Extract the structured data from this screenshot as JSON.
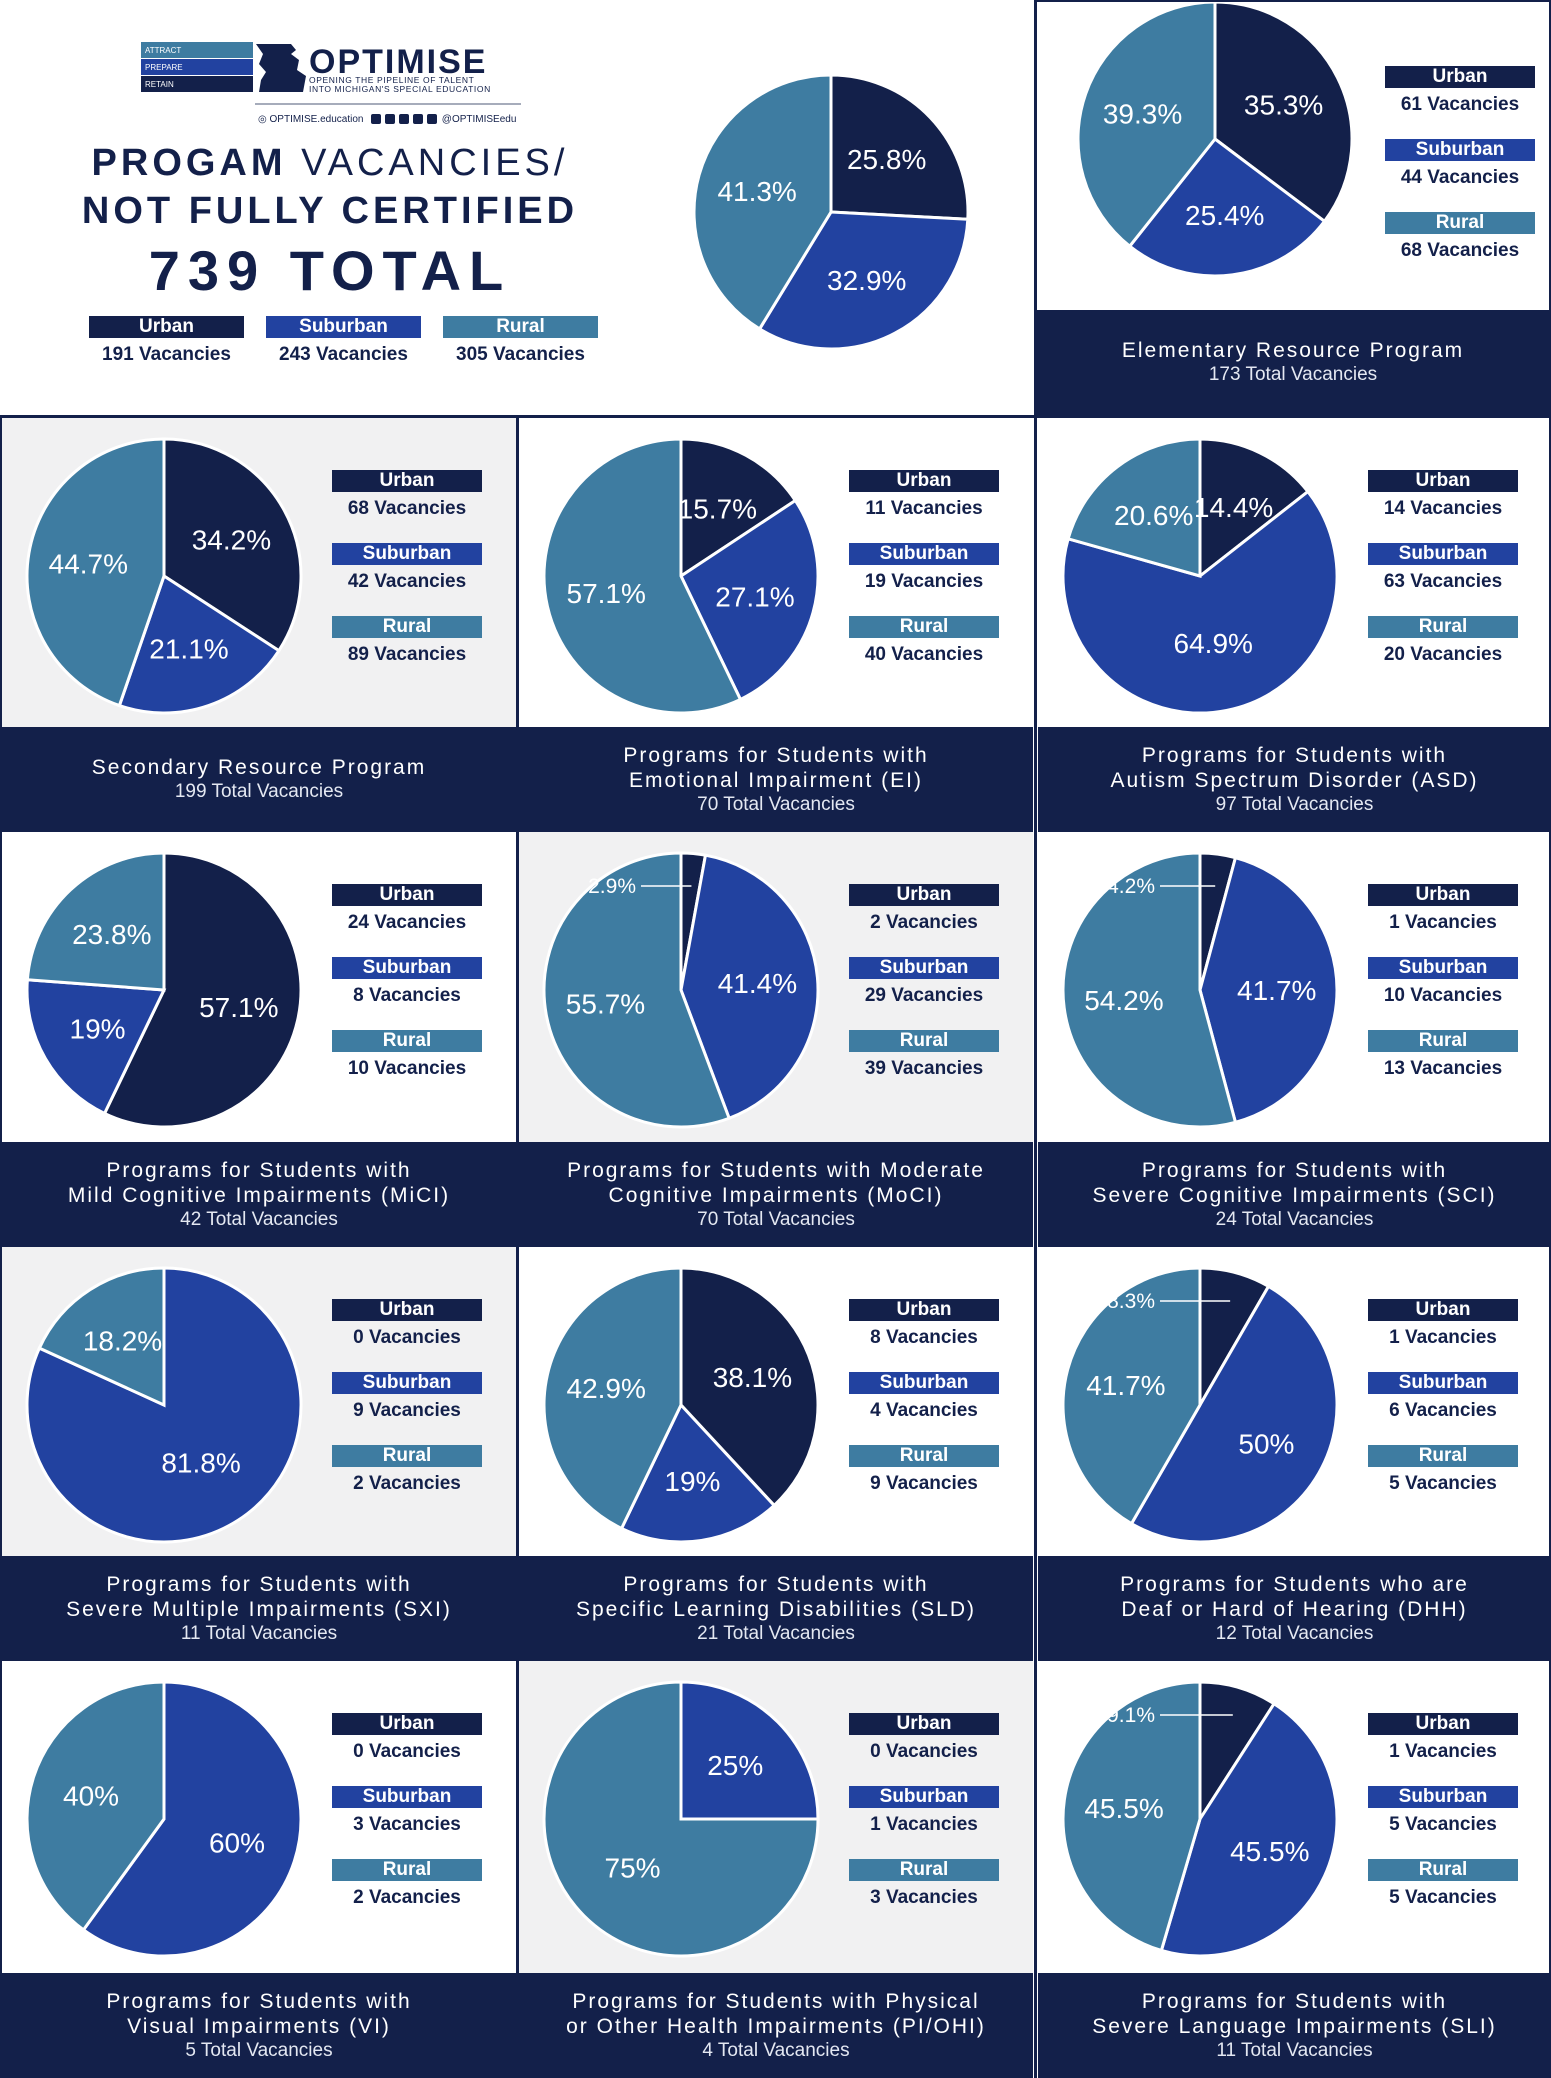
{
  "header": {
    "brand_name": "OPTIMISE",
    "tagline_line1": "OPENING THE PIPELINE OF TALENT",
    "tagline_line2": "INTO MICHIGAN'S SPECIAL EDUCATION",
    "steps": [
      "ATTRACT",
      "PREPARE",
      "RETAIN"
    ],
    "website": "OPTIMISE.education",
    "handle": "@OPTIMISEedu",
    "title_line1_a": "PROGAM ",
    "title_line1_b": "VACANCIES/",
    "title_line2": "NOT FULLY CERTIFIED",
    "total": "739 TOTAL"
  },
  "colors": {
    "urban": "#13204a",
    "suburban": "#2242a0",
    "rural": "#3e7ca1",
    "navy": "#13204a",
    "grey_panel": "#f1f1f2"
  },
  "legend_labels": {
    "urban": "Urban",
    "suburban": "Suburban",
    "rural": "Rural"
  },
  "chart_data": [
    {
      "id": "overall",
      "type": "pie",
      "title": "Progam Vacancies/Not Fully Certified",
      "total": "739 TOTAL",
      "slices": [
        {
          "name": "Urban",
          "value": 191,
          "label": "25.8%",
          "count": "191 Vacancies"
        },
        {
          "name": "Suburban",
          "value": 243,
          "label": "32.9%",
          "count": "243 Vacancies"
        },
        {
          "name": "Rural",
          "value": 305,
          "label": "41.3%",
          "count": "305 Vacancies"
        }
      ]
    },
    {
      "id": "elementary",
      "type": "pie",
      "title": "Elementary Resource Program",
      "total": "173 Total Vacancies",
      "slices": [
        {
          "name": "Urban",
          "value": 61,
          "label": "35.3%",
          "count": "61 Vacancies"
        },
        {
          "name": "Suburban",
          "value": 44,
          "label": "25.4%",
          "count": "44 Vacancies"
        },
        {
          "name": "Rural",
          "value": 68,
          "label": "39.3%",
          "count": "68 Vacancies"
        }
      ]
    },
    {
      "id": "secondary",
      "type": "pie",
      "title": "Secondary Resource Program",
      "total": "199 Total Vacancies",
      "slices": [
        {
          "name": "Urban",
          "value": 68,
          "label": "34.2%",
          "count": "68 Vacancies"
        },
        {
          "name": "Suburban",
          "value": 42,
          "label": "21.1%",
          "count": "42 Vacancies"
        },
        {
          "name": "Rural",
          "value": 89,
          "label": "44.7%",
          "count": "89 Vacancies"
        }
      ]
    },
    {
      "id": "ei",
      "type": "pie",
      "title": "Programs for Students with\nEmotional Impairment (EI)",
      "total": "70 Total Vacancies",
      "slices": [
        {
          "name": "Urban",
          "value": 11,
          "label": "15.7%",
          "count": "11 Vacancies"
        },
        {
          "name": "Suburban",
          "value": 19,
          "label": "27.1%",
          "count": "19 Vacancies"
        },
        {
          "name": "Rural",
          "value": 40,
          "label": "57.1%",
          "count": "40 Vacancies"
        }
      ]
    },
    {
      "id": "asd",
      "type": "pie",
      "title": "Programs for Students with\nAutism Spectrum Disorder (ASD)",
      "total": "97 Total Vacancies",
      "slices": [
        {
          "name": "Urban",
          "value": 14,
          "label": "14.4%",
          "count": "14 Vacancies"
        },
        {
          "name": "Suburban",
          "value": 63,
          "label": "64.9%",
          "count": "63 Vacancies"
        },
        {
          "name": "Rural",
          "value": 20,
          "label": "20.6%",
          "count": "20 Vacancies"
        }
      ]
    },
    {
      "id": "mici",
      "type": "pie",
      "title": "Programs for Students with\nMild Cognitive Impairments (MiCI)",
      "total": "42 Total Vacancies",
      "slices": [
        {
          "name": "Urban",
          "value": 24,
          "label": "57.1%",
          "count": "24 Vacancies"
        },
        {
          "name": "Suburban",
          "value": 8,
          "label": "19%",
          "count": "8 Vacancies"
        },
        {
          "name": "Rural",
          "value": 10,
          "label": "23.8%",
          "count": "10 Vacancies"
        }
      ]
    },
    {
      "id": "moci",
      "type": "pie",
      "title": "Programs for Students with Moderate\nCognitive Impairments (MoCI)",
      "total": "70 Total Vacancies",
      "slices": [
        {
          "name": "Urban",
          "value": 2,
          "label": "2.9%",
          "count": "2 Vacancies"
        },
        {
          "name": "Suburban",
          "value": 29,
          "label": "41.4%",
          "count": "29 Vacancies"
        },
        {
          "name": "Rural",
          "value": 39,
          "label": "55.7%",
          "count": "39 Vacancies"
        }
      ]
    },
    {
      "id": "sci",
      "type": "pie",
      "title": "Programs for Students with\nSevere Cognitive Impairments (SCI)",
      "total": "24  Total Vacancies",
      "slices": [
        {
          "name": "Urban",
          "value": 1,
          "label": "4.2%",
          "count": "1 Vacancies"
        },
        {
          "name": "Suburban",
          "value": 10,
          "label": "41.7%",
          "count": "10 Vacancies"
        },
        {
          "name": "Rural",
          "value": 13,
          "label": "54.2%",
          "count": "13 Vacancies"
        }
      ]
    },
    {
      "id": "sxi",
      "type": "pie",
      "title": "Programs for Students with\nSevere Multiple Impairments (SXI)",
      "total": "11 Total Vacancies",
      "slices": [
        {
          "name": "Urban",
          "value": 0,
          "label": "",
          "count": "0 Vacancies"
        },
        {
          "name": "Suburban",
          "value": 9,
          "label": "81.8%",
          "count": "9 Vacancies"
        },
        {
          "name": "Rural",
          "value": 2,
          "label": "18.2%",
          "count": "2 Vacancies"
        }
      ]
    },
    {
      "id": "sld",
      "type": "pie",
      "title": "Programs for Students with\nSpecific Learning Disabilities (SLD)",
      "total": "21 Total Vacancies",
      "slices": [
        {
          "name": "Urban",
          "value": 8,
          "label": "38.1%",
          "count": "8 Vacancies"
        },
        {
          "name": "Suburban",
          "value": 4,
          "label": "19%",
          "count": "4 Vacancies"
        },
        {
          "name": "Rural",
          "value": 9,
          "label": "42.9%",
          "count": "9 Vacancies"
        }
      ]
    },
    {
      "id": "dhh",
      "type": "pie",
      "title": "Programs for Students who are\nDeaf or Hard of Hearing (DHH)",
      "total": "12 Total Vacancies",
      "slices": [
        {
          "name": "Urban",
          "value": 1,
          "label": "8.3%",
          "count": "1 Vacancies"
        },
        {
          "name": "Suburban",
          "value": 6,
          "label": "50%",
          "count": "6 Vacancies"
        },
        {
          "name": "Rural",
          "value": 5,
          "label": "41.7%",
          "count": "5 Vacancies"
        }
      ]
    },
    {
      "id": "vi",
      "type": "pie",
      "title": "Programs for Students with\nVisual Impairments (VI)",
      "total": "5 Total Vacancies",
      "slices": [
        {
          "name": "Urban",
          "value": 0,
          "label": "",
          "count": "0 Vacancies"
        },
        {
          "name": "Suburban",
          "value": 3,
          "label": "60%",
          "count": "3 Vacancies"
        },
        {
          "name": "Rural",
          "value": 2,
          "label": "40%",
          "count": "2 Vacancies"
        }
      ]
    },
    {
      "id": "pi_ohi",
      "type": "pie",
      "title": "Programs for Students with Physical\nor Other Health Impairments (PI/OHI)",
      "total": "4 Total Vacancies",
      "slices": [
        {
          "name": "Urban",
          "value": 0,
          "label": "",
          "count": "0 Vacancies"
        },
        {
          "name": "Suburban",
          "value": 1,
          "label": "25%",
          "count": "1 Vacancies"
        },
        {
          "name": "Rural",
          "value": 3,
          "label": "75%",
          "count": "3 Vacancies"
        }
      ]
    },
    {
      "id": "sli",
      "type": "pie",
      "title": "Programs for Students with\nSevere Language Impairments (SLI)",
      "total": "11 Total Vacancies",
      "slices": [
        {
          "name": "Urban",
          "value": 1,
          "label": "9.1%",
          "count": "1 Vacancies"
        },
        {
          "name": "Suburban",
          "value": 5,
          "label": "45.5%",
          "count": "5 Vacancies"
        },
        {
          "name": "Rural",
          "value": 5,
          "label": "45.5%",
          "count": "5 Vacancies"
        }
      ]
    }
  ]
}
